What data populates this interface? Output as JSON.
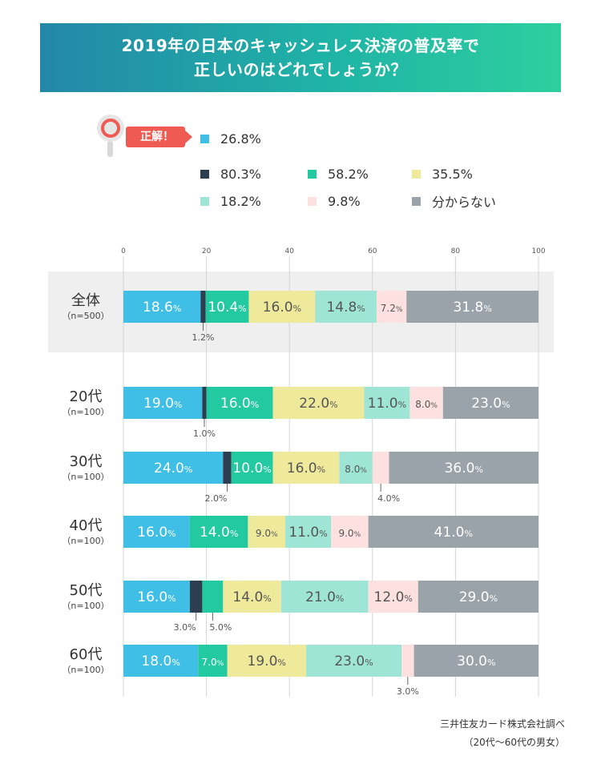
{
  "header": {
    "title_line1": "2019年の日本のキャッシュレス決済の普及率で",
    "title_line2": "正しいのはどれでしょうか？"
  },
  "answer_tag": "正解！",
  "source": {
    "line1": "三井住友カード株式会社調べ",
    "line2": "（20代〜60代の男女）"
  },
  "colors": {
    "c26": "#3fbee6",
    "c80": "#2d3e50",
    "c58": "#23c9a0",
    "c35": "#efe99b",
    "c18": "#9ee5d6",
    "c9": "#fde0e0",
    "unknown": "#9aa2aa"
  },
  "chart_data": {
    "type": "bar",
    "orientation": "horizontal",
    "stacked": true,
    "x_ticks": [
      0,
      20,
      40,
      60,
      80,
      100
    ],
    "xlim": [
      0,
      100
    ],
    "grid": true,
    "legend": [
      {
        "label": "26.8%",
        "color": "#3fbee6",
        "correct": true
      },
      {
        "label": "80.3%",
        "color": "#2d3e50"
      },
      {
        "label": "58.2%",
        "color": "#23c9a0"
      },
      {
        "label": "35.5%",
        "color": "#efe99b"
      },
      {
        "label": "18.2%",
        "color": "#9ee5d6"
      },
      {
        "label": "9.8%",
        "color": "#fde0e0"
      },
      {
        "label": "分からない",
        "color": "#9aa2aa"
      }
    ],
    "categories": [
      {
        "name": "全体",
        "n": "（n=500）"
      },
      {
        "name": "20代",
        "n": "（n=100）"
      },
      {
        "name": "30代",
        "n": "（n=100）"
      },
      {
        "name": "40代",
        "n": "（n=100）"
      },
      {
        "name": "50代",
        "n": "（n=100）"
      },
      {
        "name": "60代",
        "n": "（n=100）"
      }
    ],
    "series": [
      {
        "name": "26.8%",
        "values": [
          18.6,
          19.0,
          24.0,
          16.0,
          16.0,
          18.0
        ]
      },
      {
        "name": "80.3%",
        "values": [
          1.2,
          1.0,
          2.0,
          0.0,
          3.0,
          0.0
        ]
      },
      {
        "name": "58.2%",
        "values": [
          10.4,
          16.0,
          10.0,
          14.0,
          5.0,
          7.0
        ]
      },
      {
        "name": "35.5%",
        "values": [
          16.0,
          22.0,
          16.0,
          9.0,
          14.0,
          19.0
        ]
      },
      {
        "name": "18.2%",
        "values": [
          14.8,
          11.0,
          8.0,
          11.0,
          21.0,
          23.0
        ]
      },
      {
        "name": "9.8%",
        "values": [
          7.2,
          8.0,
          4.0,
          9.0,
          12.0,
          3.0
        ]
      },
      {
        "name": "分からない",
        "values": [
          31.8,
          23.0,
          36.0,
          41.0,
          29.0,
          30.0
        ]
      }
    ]
  }
}
